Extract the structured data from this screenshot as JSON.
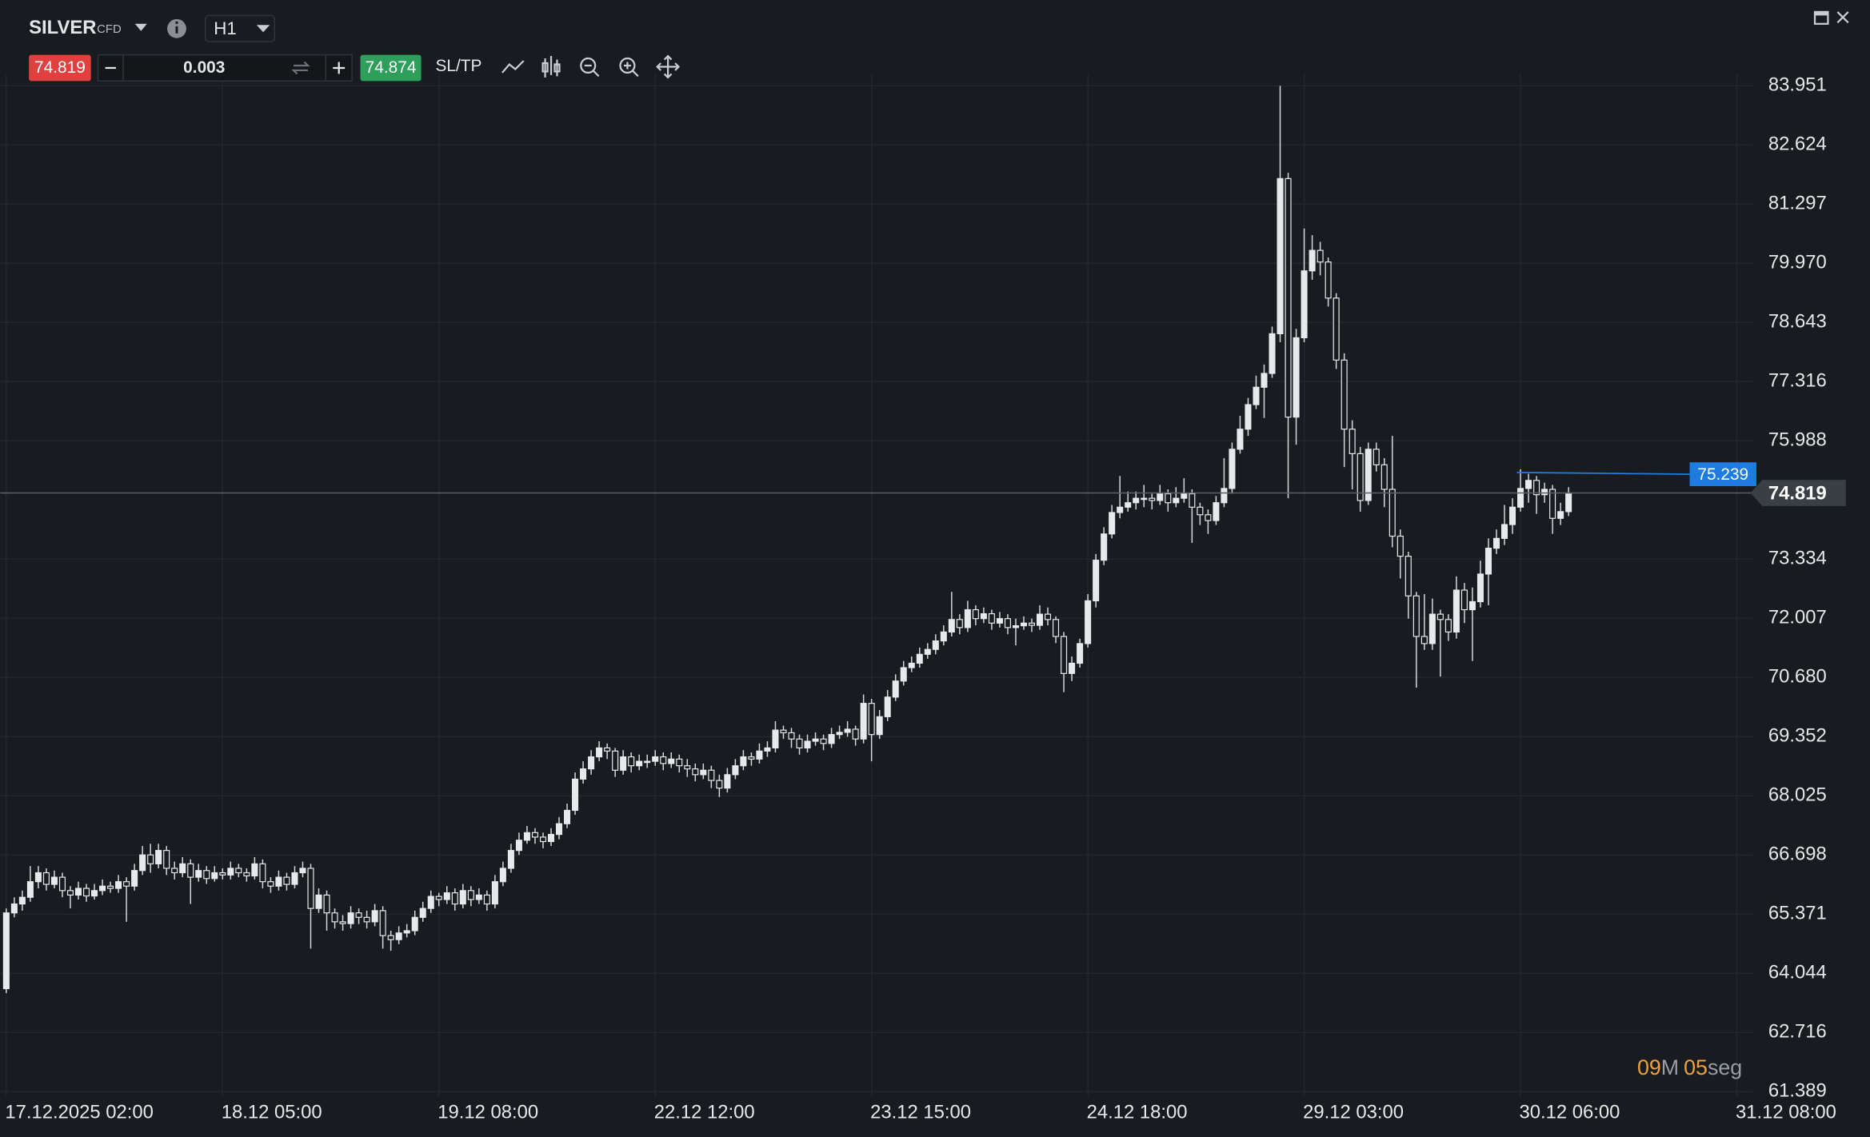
{
  "header": {
    "symbol": "SILVER",
    "tag": "CFD",
    "timeframe": "H1"
  },
  "trade_bar": {
    "sell_price": "74.819",
    "quantity": "0.003",
    "buy_price": "74.874",
    "sl_tp": "SL/TP"
  },
  "countdown": {
    "minutes": "09",
    "minutes_unit": "M",
    "seconds": "05",
    "seconds_unit": "seg"
  },
  "chart_data": {
    "type": "candlestick",
    "candles": [
      [
        63.7,
        65.5,
        63.6,
        65.4
      ],
      [
        65.4,
        65.75,
        65.3,
        65.6
      ],
      [
        65.6,
        65.9,
        65.45,
        65.75
      ],
      [
        65.75,
        66.45,
        65.65,
        66.1
      ],
      [
        66.1,
        66.45,
        65.95,
        66.3
      ],
      [
        66.3,
        66.4,
        65.9,
        66.04
      ],
      [
        66.04,
        66.35,
        65.95,
        66.2
      ],
      [
        66.2,
        66.3,
        65.75,
        65.9
      ],
      [
        65.9,
        66.0,
        65.5,
        65.8
      ],
      [
        65.8,
        66.1,
        65.7,
        65.95
      ],
      [
        65.95,
        66.05,
        65.65,
        65.78
      ],
      [
        65.78,
        66.05,
        65.7,
        65.9
      ],
      [
        65.9,
        66.15,
        65.8,
        66.0
      ],
      [
        66.0,
        66.1,
        65.85,
        65.95
      ],
      [
        65.95,
        66.25,
        65.85,
        66.1
      ],
      [
        66.1,
        66.2,
        65.2,
        66.0
      ],
      [
        66.0,
        66.5,
        65.9,
        66.35
      ],
      [
        66.35,
        66.9,
        66.25,
        66.7
      ],
      [
        66.7,
        66.95,
        66.3,
        66.5
      ],
      [
        66.5,
        66.95,
        66.4,
        66.8
      ],
      [
        66.8,
        66.9,
        66.25,
        66.4
      ],
      [
        66.4,
        66.55,
        66.15,
        66.3
      ],
      [
        66.3,
        66.65,
        66.2,
        66.5
      ],
      [
        66.5,
        66.6,
        65.6,
        66.2
      ],
      [
        66.2,
        66.5,
        66.1,
        66.35
      ],
      [
        66.35,
        66.45,
        66.05,
        66.17
      ],
      [
        66.17,
        66.45,
        66.1,
        66.3
      ],
      [
        66.3,
        66.4,
        66.15,
        66.25
      ],
      [
        66.25,
        66.55,
        66.15,
        66.4
      ],
      [
        66.4,
        66.5,
        66.2,
        66.3
      ],
      [
        66.3,
        66.4,
        66.1,
        66.23
      ],
      [
        66.23,
        66.65,
        66.15,
        66.5
      ],
      [
        66.5,
        66.6,
        65.95,
        66.1
      ],
      [
        66.1,
        66.2,
        65.85,
        66.0
      ],
      [
        66.0,
        66.35,
        65.9,
        66.2
      ],
      [
        66.2,
        66.3,
        65.9,
        66.04
      ],
      [
        66.04,
        66.45,
        65.95,
        66.3
      ],
      [
        66.3,
        66.55,
        66.2,
        66.4
      ],
      [
        66.4,
        66.5,
        64.6,
        65.5
      ],
      [
        65.5,
        65.95,
        65.4,
        65.8
      ],
      [
        65.8,
        65.9,
        65.0,
        65.4
      ],
      [
        65.4,
        65.5,
        65.05,
        65.2
      ],
      [
        65.2,
        65.35,
        65.0,
        65.16
      ],
      [
        65.16,
        65.55,
        65.05,
        65.4
      ],
      [
        65.4,
        65.5,
        65.15,
        65.3
      ],
      [
        65.3,
        65.45,
        65.05,
        65.2
      ],
      [
        65.2,
        65.6,
        65.1,
        65.45
      ],
      [
        65.45,
        65.55,
        64.6,
        64.89
      ],
      [
        64.89,
        65.0,
        64.55,
        64.8
      ],
      [
        64.8,
        65.1,
        64.7,
        64.95
      ],
      [
        64.95,
        65.15,
        64.85,
        65.0
      ],
      [
        65.0,
        65.45,
        64.9,
        65.3
      ],
      [
        65.3,
        65.65,
        65.2,
        65.5
      ],
      [
        65.5,
        65.9,
        65.4,
        65.77
      ],
      [
        65.77,
        65.85,
        65.55,
        65.7
      ],
      [
        65.7,
        66.0,
        65.6,
        65.85
      ],
      [
        65.85,
        65.95,
        65.45,
        65.6
      ],
      [
        65.6,
        66.05,
        65.5,
        65.9
      ],
      [
        65.9,
        66.0,
        65.55,
        65.7
      ],
      [
        65.7,
        65.95,
        65.6,
        65.8
      ],
      [
        65.8,
        65.9,
        65.45,
        65.6
      ],
      [
        65.6,
        66.25,
        65.5,
        66.1
      ],
      [
        66.1,
        66.55,
        66.0,
        66.4
      ],
      [
        66.4,
        66.95,
        66.3,
        66.8
      ],
      [
        66.8,
        67.2,
        66.7,
        67.03
      ],
      [
        67.03,
        67.35,
        66.95,
        67.2
      ],
      [
        67.2,
        67.3,
        66.95,
        67.1
      ],
      [
        67.1,
        67.2,
        66.85,
        67.0
      ],
      [
        67.0,
        67.3,
        66.9,
        67.16
      ],
      [
        67.16,
        67.55,
        67.05,
        67.4
      ],
      [
        67.4,
        67.85,
        67.3,
        67.7
      ],
      [
        67.7,
        68.55,
        67.6,
        68.4
      ],
      [
        68.4,
        68.8,
        68.3,
        68.63
      ],
      [
        68.63,
        69.05,
        68.5,
        68.9
      ],
      [
        68.9,
        69.25,
        68.8,
        69.1
      ],
      [
        69.1,
        69.2,
        68.85,
        69.03
      ],
      [
        69.03,
        69.1,
        68.45,
        68.6
      ],
      [
        68.6,
        69.05,
        68.5,
        68.9
      ],
      [
        68.9,
        69.0,
        68.55,
        68.7
      ],
      [
        68.7,
        68.95,
        68.6,
        68.8
      ],
      [
        68.8,
        68.95,
        68.65,
        68.8
      ],
      [
        68.8,
        69.05,
        68.7,
        68.9
      ],
      [
        68.9,
        69.0,
        68.6,
        68.75
      ],
      [
        68.75,
        69.0,
        68.65,
        68.85
      ],
      [
        68.85,
        68.95,
        68.55,
        68.7
      ],
      [
        68.7,
        68.85,
        68.45,
        68.63
      ],
      [
        68.63,
        68.75,
        68.35,
        68.5
      ],
      [
        68.5,
        68.75,
        68.4,
        68.6
      ],
      [
        68.6,
        68.7,
        68.2,
        68.37
      ],
      [
        68.37,
        68.5,
        68.0,
        68.2
      ],
      [
        68.2,
        68.65,
        68.1,
        68.5
      ],
      [
        68.5,
        68.85,
        68.4,
        68.7
      ],
      [
        68.7,
        69.05,
        68.6,
        68.9
      ],
      [
        68.9,
        69.0,
        68.7,
        68.85
      ],
      [
        68.85,
        69.2,
        68.75,
        69.03
      ],
      [
        69.03,
        69.25,
        68.9,
        69.1
      ],
      [
        69.1,
        69.7,
        69.0,
        69.5
      ],
      [
        69.5,
        69.6,
        69.3,
        69.44
      ],
      [
        69.44,
        69.55,
        69.1,
        69.3
      ],
      [
        69.3,
        69.4,
        68.95,
        69.1
      ],
      [
        69.1,
        69.4,
        69.0,
        69.25
      ],
      [
        69.25,
        69.45,
        69.15,
        69.3
      ],
      [
        69.3,
        69.4,
        69.05,
        69.2
      ],
      [
        69.2,
        69.55,
        69.1,
        69.4
      ],
      [
        69.4,
        69.6,
        69.3,
        69.45
      ],
      [
        69.45,
        69.7,
        69.35,
        69.52
      ],
      [
        69.52,
        69.6,
        69.15,
        69.3
      ],
      [
        69.3,
        70.3,
        69.2,
        70.1
      ],
      [
        70.1,
        70.2,
        68.8,
        69.4
      ],
      [
        69.4,
        69.95,
        69.3,
        69.8
      ],
      [
        69.8,
        70.4,
        69.7,
        70.24
      ],
      [
        70.24,
        70.75,
        70.15,
        70.6
      ],
      [
        70.6,
        71.05,
        70.5,
        70.9
      ],
      [
        70.9,
        71.15,
        70.8,
        71.0
      ],
      [
        71.0,
        71.35,
        70.9,
        71.2
      ],
      [
        71.2,
        71.45,
        71.1,
        71.31
      ],
      [
        71.31,
        71.65,
        71.2,
        71.5
      ],
      [
        71.5,
        71.85,
        71.4,
        71.7
      ],
      [
        71.7,
        72.6,
        71.6,
        71.98
      ],
      [
        71.98,
        72.1,
        71.65,
        71.8
      ],
      [
        71.8,
        72.4,
        71.7,
        72.2
      ],
      [
        72.2,
        72.3,
        71.85,
        72.0
      ],
      [
        72.0,
        72.25,
        71.9,
        72.11
      ],
      [
        72.11,
        72.2,
        71.75,
        71.9
      ],
      [
        71.9,
        72.15,
        71.8,
        72.0
      ],
      [
        72.0,
        72.1,
        71.65,
        71.8
      ],
      [
        71.8,
        72.0,
        71.4,
        71.84
      ],
      [
        71.84,
        72.05,
        71.75,
        71.9
      ],
      [
        71.9,
        72.0,
        71.7,
        71.85
      ],
      [
        71.85,
        72.3,
        71.75,
        72.1
      ],
      [
        72.1,
        72.25,
        71.85,
        71.98
      ],
      [
        71.98,
        72.05,
        71.45,
        71.6
      ],
      [
        71.6,
        71.7,
        70.35,
        70.77
      ],
      [
        70.77,
        71.15,
        70.6,
        71.0
      ],
      [
        71.0,
        71.55,
        70.9,
        71.44
      ],
      [
        71.44,
        72.55,
        71.35,
        72.4
      ],
      [
        72.4,
        73.45,
        72.25,
        73.31
      ],
      [
        73.31,
        74.05,
        73.2,
        73.9
      ],
      [
        73.9,
        74.55,
        73.8,
        74.38
      ],
      [
        74.38,
        75.2,
        74.25,
        74.5
      ],
      [
        74.5,
        74.85,
        74.4,
        74.6
      ],
      [
        74.6,
        74.85,
        74.45,
        74.7
      ],
      [
        74.7,
        75.0,
        74.5,
        74.7
      ],
      [
        74.7,
        74.8,
        74.45,
        74.65
      ],
      [
        74.65,
        75.0,
        74.55,
        74.8
      ],
      [
        74.8,
        74.9,
        74.4,
        74.6
      ],
      [
        74.6,
        74.95,
        74.5,
        74.7
      ],
      [
        74.7,
        75.15,
        74.6,
        74.8
      ],
      [
        74.8,
        74.9,
        73.7,
        74.5
      ],
      [
        74.5,
        74.6,
        74.1,
        74.33
      ],
      [
        74.33,
        74.45,
        73.9,
        74.2
      ],
      [
        74.2,
        74.75,
        74.1,
        74.6
      ],
      [
        74.6,
        75.6,
        74.5,
        74.92
      ],
      [
        74.92,
        75.95,
        74.8,
        75.8
      ],
      [
        75.8,
        76.55,
        75.7,
        76.25
      ],
      [
        76.25,
        76.95,
        76.1,
        76.8
      ],
      [
        76.8,
        77.45,
        76.7,
        77.19
      ],
      [
        77.19,
        77.7,
        76.5,
        77.5
      ],
      [
        77.5,
        78.55,
        77.4,
        78.39
      ],
      [
        78.39,
        83.95,
        78.2,
        81.87
      ],
      [
        81.87,
        82.0,
        74.7,
        76.52
      ],
      [
        76.52,
        78.5,
        75.9,
        78.3
      ],
      [
        78.3,
        80.75,
        78.2,
        79.8
      ],
      [
        79.8,
        80.6,
        79.6,
        80.26
      ],
      [
        80.26,
        80.45,
        79.7,
        80.0
      ],
      [
        80.0,
        80.1,
        79.0,
        79.19
      ],
      [
        79.19,
        79.3,
        77.6,
        77.8
      ],
      [
        77.8,
        77.95,
        75.4,
        76.25
      ],
      [
        76.25,
        76.45,
        74.9,
        75.7
      ],
      [
        75.7,
        75.85,
        74.4,
        74.65
      ],
      [
        74.65,
        75.95,
        74.55,
        75.8
      ],
      [
        75.8,
        75.95,
        75.3,
        75.45
      ],
      [
        75.45,
        75.6,
        74.5,
        74.9
      ],
      [
        74.9,
        76.1,
        73.6,
        73.85
      ],
      [
        73.85,
        74.0,
        72.9,
        73.4
      ],
      [
        73.4,
        73.5,
        72.0,
        72.51
      ],
      [
        72.51,
        72.6,
        70.45,
        71.6
      ],
      [
        71.6,
        72.55,
        71.3,
        71.44
      ],
      [
        71.44,
        72.45,
        71.3,
        72.1
      ],
      [
        72.1,
        72.2,
        70.7,
        71.98
      ],
      [
        71.98,
        72.1,
        71.5,
        71.7
      ],
      [
        71.7,
        72.95,
        71.55,
        72.64
      ],
      [
        72.64,
        72.8,
        71.9,
        72.2
      ],
      [
        72.2,
        72.7,
        71.05,
        72.38
      ],
      [
        72.38,
        73.3,
        72.25,
        73.0
      ],
      [
        73.0,
        73.8,
        72.3,
        73.58
      ],
      [
        73.58,
        74.0,
        73.45,
        73.8
      ],
      [
        73.8,
        74.55,
        73.65,
        74.11
      ],
      [
        74.11,
        74.7,
        73.9,
        74.5
      ],
      [
        74.5,
        75.35,
        74.4,
        74.92
      ],
      [
        74.92,
        75.25,
        74.6,
        75.1
      ],
      [
        75.1,
        75.2,
        74.35,
        74.78
      ],
      [
        74.78,
        75.05,
        74.6,
        74.9
      ],
      [
        74.9,
        75.0,
        73.9,
        74.25
      ],
      [
        74.25,
        74.6,
        74.1,
        74.4
      ],
      [
        74.4,
        74.95,
        74.3,
        74.819
      ]
    ],
    "xlim": [
      0,
      218
    ],
    "xticks": [
      {
        "value": 0,
        "label": "17.12.2025 02:00"
      },
      {
        "value": 27,
        "label": "18.12 05:00"
      },
      {
        "value": 54,
        "label": "19.12 08:00"
      },
      {
        "value": 81,
        "label": "22.12 12:00"
      },
      {
        "value": 108,
        "label": "23.12 15:00"
      },
      {
        "value": 135,
        "label": "24.12 18:00"
      },
      {
        "value": 162,
        "label": "29.12 03:00"
      },
      {
        "value": 189,
        "label": "30.12 06:00"
      },
      {
        "value": 216,
        "label": "31.12 08:00"
      }
    ],
    "ylim": [
      61.389,
      83.951
    ],
    "yticks": [
      61.389,
      62.716,
      64.044,
      65.371,
      66.698,
      68.025,
      69.352,
      {
        "value": 70.68,
        "label": "70.680"
      },
      72.007,
      73.334,
      75.988,
      77.316,
      78.643,
      {
        "value": 79.97,
        "label": "79.970"
      },
      81.297,
      82.624,
      83.951
    ],
    "current_price": 74.819,
    "order_level": 75.239,
    "grid": true,
    "up_color": "#e8e9ea",
    "down_color": "#181c20",
    "wick_color": "#d6d8da",
    "price_line_color": "#5b6068",
    "level_color": "#1e7be0"
  }
}
